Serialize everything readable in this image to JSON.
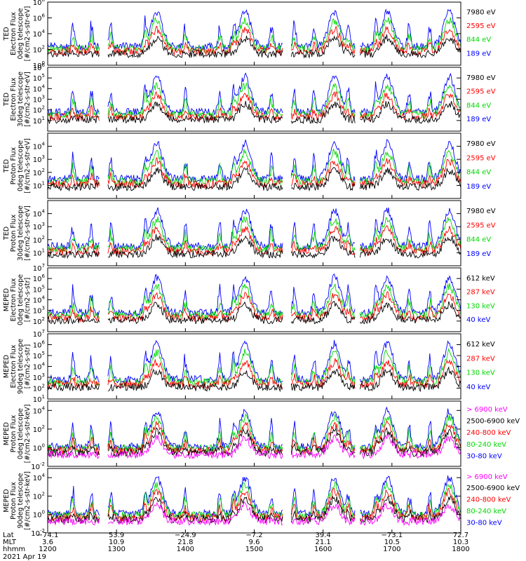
{
  "chart_data": [
    {
      "type": "line",
      "ylabel": [
        "TED",
        "Electron Flux",
        "0deg telescope",
        "[#/cm2-s-str-eV]"
      ],
      "y_decades": [
        0,
        8
      ],
      "y_tick_exps": [
        0,
        2,
        4,
        6,
        8
      ],
      "log_y": true,
      "series": [
        {
          "name": "7980 eV",
          "color": "#000000"
        },
        {
          "name": "2595 eV",
          "color": "#ff0000"
        },
        {
          "name": "844 eV",
          "color": "#00d800"
        },
        {
          "name": "189 eV",
          "color": "#0000ff"
        }
      ]
    },
    {
      "type": "line",
      "ylabel": [
        "TED",
        "Electron Flux",
        "30deg telescope",
        "[#/cm2-s-str-eV]"
      ],
      "y_decades": [
        0,
        6
      ],
      "y_tick_exps": [
        1,
        2,
        3,
        4,
        5,
        6
      ],
      "log_y": true,
      "series": [
        {
          "name": "7980 eV",
          "color": "#000000"
        },
        {
          "name": "2595 eV",
          "color": "#ff0000"
        },
        {
          "name": "844 eV",
          "color": "#00d800"
        },
        {
          "name": "189 eV",
          "color": "#0000ff"
        }
      ]
    },
    {
      "type": "line",
      "ylabel": [
        "TED",
        "Proton Flux",
        "0deg telescope",
        "[#/cm2-s-str-eV]"
      ],
      "y_decades": [
        0,
        5
      ],
      "y_tick_exps": [
        1,
        2,
        3,
        4
      ],
      "log_y": true,
      "series": [
        {
          "name": "7980 eV",
          "color": "#000000"
        },
        {
          "name": "2595 eV",
          "color": "#ff0000"
        },
        {
          "name": "844 eV",
          "color": "#00d800"
        },
        {
          "name": "189 eV",
          "color": "#0000ff"
        }
      ]
    },
    {
      "type": "line",
      "ylabel": [
        "TED",
        "Proton Flux",
        "30deg telescope",
        "[#/cm2-s-str-eV]"
      ],
      "y_decades": [
        0,
        5
      ],
      "y_tick_exps": [
        1,
        2,
        3,
        4
      ],
      "log_y": true,
      "series": [
        {
          "name": "7980 eV",
          "color": "#000000"
        },
        {
          "name": "2595 eV",
          "color": "#ff0000"
        },
        {
          "name": "844 eV",
          "color": "#00d800"
        },
        {
          "name": "189 eV",
          "color": "#0000ff"
        }
      ]
    },
    {
      "type": "line",
      "ylabel": [
        "MEPED",
        "Electron Flux",
        "0deg telescope",
        "[#/cm2-s-str]"
      ],
      "y_decades": [
        1,
        7
      ],
      "y_tick_exps": [
        2,
        3,
        4,
        5,
        6,
        7
      ],
      "log_y": true,
      "series": [
        {
          "name": "612 keV",
          "color": "#000000"
        },
        {
          "name": "287 keV",
          "color": "#ff0000"
        },
        {
          "name": "130 keV",
          "color": "#00d800"
        },
        {
          "name": "40 keV",
          "color": "#0000ff"
        }
      ]
    },
    {
      "type": "line",
      "ylabel": [
        "MEPED",
        "Electron Flux",
        "90deg telescope",
        "[#/cm2-s-str]"
      ],
      "y_decades": [
        1,
        7
      ],
      "y_tick_exps": [
        1,
        2,
        3,
        4,
        5,
        6,
        7
      ],
      "log_y": true,
      "series": [
        {
          "name": "612 keV",
          "color": "#000000"
        },
        {
          "name": "287 keV",
          "color": "#ff0000"
        },
        {
          "name": "130 keV",
          "color": "#00d800"
        },
        {
          "name": "40 keV",
          "color": "#0000ff"
        }
      ]
    },
    {
      "type": "line",
      "ylabel": [
        "MEPED",
        "Proton Flux",
        "0deg telescope",
        "[#/cm2-s-str-keV]"
      ],
      "y_decades": [
        -2,
        5
      ],
      "y_tick_exps": [
        -2,
        0,
        2,
        4
      ],
      "log_y": true,
      "series": [
        {
          "name": "> 6900 keV",
          "color": "#ff00ff"
        },
        {
          "name": "2500-6900 keV",
          "color": "#000000"
        },
        {
          "name": "240-800 keV",
          "color": "#ff0000"
        },
        {
          "name": "80-240 keV",
          "color": "#00d800"
        },
        {
          "name": "30-80 keV",
          "color": "#0000ff"
        }
      ]
    },
    {
      "type": "line",
      "ylabel": [
        "MEPED",
        "Proton Flux",
        "90deg telescope",
        "[#/cm2-s-str-keV]"
      ],
      "y_decades": [
        -2,
        5
      ],
      "y_tick_exps": [
        -2,
        0,
        2,
        4
      ],
      "log_y": true,
      "series": [
        {
          "name": "> 6900 keV",
          "color": "#ff00ff"
        },
        {
          "name": "2500-6900 keV",
          "color": "#000000"
        },
        {
          "name": "240-800 keV",
          "color": "#ff0000"
        },
        {
          "name": "80-240 keV",
          "color": "#00d800"
        },
        {
          "name": "30-80 keV",
          "color": "#0000ff"
        }
      ]
    }
  ],
  "x_axis": {
    "hhmm_range": [
      1200,
      1800
    ],
    "row_labels": [
      "Lat",
      "MLT",
      "hhmm"
    ],
    "ticks": [
      {
        "hhmm": "1200",
        "lat": "−74.1",
        "mlt": "3.6"
      },
      {
        "hhmm": "1300",
        "lat": "53.9",
        "mlt": "10.9"
      },
      {
        "hhmm": "1400",
        "lat": "−24.9",
        "mlt": "21.8"
      },
      {
        "hhmm": "1500",
        "lat": "−7.2",
        "mlt": "9.6"
      },
      {
        "hhmm": "1600",
        "lat": "39.4",
        "mlt": "21.1"
      },
      {
        "hhmm": "1700",
        "lat": "−73.1",
        "mlt": "10.5"
      },
      {
        "hhmm": "1800",
        "lat": "72.7",
        "mlt": "10.3"
      }
    ],
    "date": "2021 Apr 19"
  }
}
